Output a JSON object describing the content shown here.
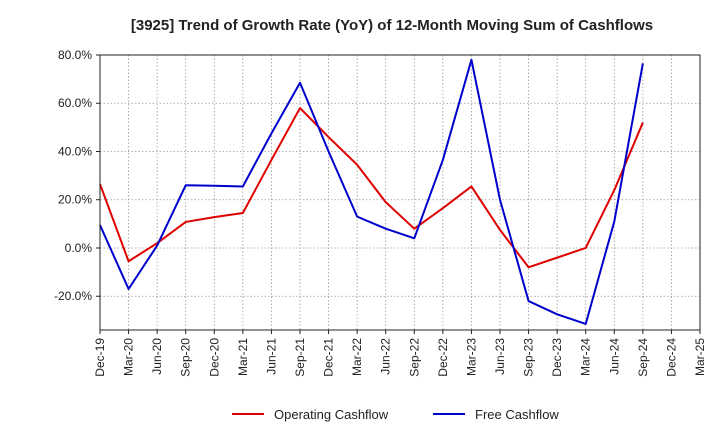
{
  "chart_data": {
    "type": "line",
    "title": "[3925]  Trend of Growth Rate (YoY) of 12-Month Moving Sum of Cashflows",
    "xlabel": "",
    "ylabel": "",
    "categories": [
      "Dec-19",
      "Mar-20",
      "Jun-20",
      "Sep-20",
      "Dec-20",
      "Mar-21",
      "Jun-21",
      "Sep-21",
      "Dec-21",
      "Mar-22",
      "Jun-22",
      "Sep-22",
      "Dec-22",
      "Mar-23",
      "Jun-23",
      "Sep-23",
      "Dec-23",
      "Mar-24",
      "Jun-24",
      "Sep-24",
      "Dec-24",
      "Mar-25"
    ],
    "ylim": [
      -34,
      80
    ],
    "yticks": [
      80,
      60,
      40,
      20,
      0,
      -20
    ],
    "ytick_labels": [
      "80.0%",
      "60.0%",
      "40.0%",
      "20.0%",
      "0.0%",
      "-20.0%"
    ],
    "grid": true,
    "legend_position": "bottom",
    "series": [
      {
        "name": "Operating Cashflow",
        "color": "#e00000",
        "values": [
          26.5,
          -5.5,
          2.0,
          10.8,
          12.8,
          14.5,
          36.5,
          58.0,
          46.0,
          34.5,
          19.0,
          8.0,
          16.5,
          25.5,
          7.5,
          -8.0,
          -4.0,
          0.0,
          24.0,
          52.0,
          null,
          null
        ]
      },
      {
        "name": "Free Cashflow",
        "color": "#0000cc",
        "values": [
          9.5,
          -17.0,
          1.0,
          26.0,
          25.8,
          25.5,
          47.5,
          68.5,
          40.0,
          13.0,
          8.0,
          4.0,
          36.5,
          78.0,
          20.0,
          -22.0,
          -27.5,
          -31.5,
          11.0,
          76.5,
          null,
          null
        ]
      }
    ]
  }
}
